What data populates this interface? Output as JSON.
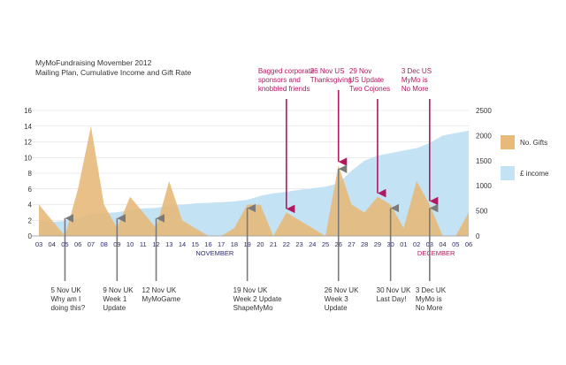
{
  "title": {
    "line1": "MyMoFundraising Movember 2012",
    "line2": "Mailing Plan, Cumulative Income and Gift Rate"
  },
  "colors": {
    "gifts": "#e7b97a",
    "income": "#c3e2f4",
    "axis": "#2b2b6e",
    "accent": "#b0195f",
    "grid": "#d8d8d8",
    "arrow": "#7a7a7a"
  },
  "chart_data": {
    "type": "area",
    "title": "MyMoFundraising Movember 2012 Mailing Plan, Cumulative Income and Gift Rate",
    "categories": [
      "03",
      "04",
      "05",
      "06",
      "07",
      "08",
      "09",
      "10",
      "11",
      "12",
      "13",
      "14",
      "15",
      "16",
      "17",
      "18",
      "19",
      "20",
      "21",
      "22",
      "23",
      "24",
      "25",
      "26",
      "27",
      "28",
      "29",
      "30",
      "01",
      "02",
      "03",
      "04",
      "05",
      "06"
    ],
    "month_labels": [
      {
        "text": "NOVEMBER",
        "month": "nov"
      },
      {
        "text": "DECEMBER",
        "month": "dec"
      }
    ],
    "left_axis": {
      "label": "No. Gifts",
      "ylim": [
        0,
        16
      ],
      "ticks": [
        0,
        2,
        4,
        6,
        8,
        10,
        12,
        14,
        16
      ]
    },
    "right_axis": {
      "label": "£ income",
      "ylim": [
        0,
        2500
      ],
      "ticks": [
        0,
        500,
        1000,
        1500,
        2000,
        2500
      ]
    },
    "series": [
      {
        "name": "No. Gifts",
        "axis": "left",
        "type": "area",
        "values": [
          4,
          2,
          0,
          6,
          14,
          4,
          1,
          5,
          3,
          1,
          7,
          2,
          1,
          0,
          0,
          1,
          4,
          4,
          0,
          3,
          2,
          1,
          0,
          9,
          4,
          3,
          5,
          4,
          1,
          7,
          4,
          0,
          0,
          3
        ]
      },
      {
        "name": "£ income",
        "axis": "right",
        "type": "area",
        "values": [
          300,
          280,
          300,
          350,
          450,
          460,
          470,
          520,
          550,
          560,
          600,
          620,
          650,
          660,
          670,
          690,
          720,
          800,
          850,
          880,
          920,
          950,
          980,
          1050,
          1300,
          1500,
          1600,
          1650,
          1700,
          1750,
          1850,
          2000,
          2050,
          2100
        ]
      }
    ],
    "legend": [
      {
        "label": "No. Gifts",
        "color": "#e7b97a"
      },
      {
        "label": "£ income",
        "color": "#c3e2f4"
      }
    ],
    "annotations_top": [
      {
        "text": "Bagged corporate\nsponsors and\nknobbled friends",
        "category_index": 19
      },
      {
        "text": "26 Nov US\nThanksgiving",
        "category_index": 23
      },
      {
        "text": "29 Nov\nUS Update\nTwo Cojones",
        "category_index": 26
      },
      {
        "text": "3 Dec US\nMyMo is\nNo More",
        "category_index": 30
      }
    ],
    "annotations_bottom": [
      {
        "text": "5 Nov UK\nWhy am I\ndoing this?",
        "category_index": 2
      },
      {
        "text": "9 Nov UK\nWeek 1\nUpdate",
        "category_index": 6
      },
      {
        "text": "12 Nov UK\nMyMoGame",
        "category_index": 9
      },
      {
        "text": "19 Nov UK\nWeek 2 Update\nShapeMyMo",
        "category_index": 16
      },
      {
        "text": "26 Nov UK\nWeek 3\nUpdate",
        "category_index": 23
      },
      {
        "text": "30 Nov UK\nLast Day!",
        "category_index": 27
      },
      {
        "text": "3 Dec UK\nMyMo is\nNo More",
        "category_index": 30
      }
    ]
  }
}
